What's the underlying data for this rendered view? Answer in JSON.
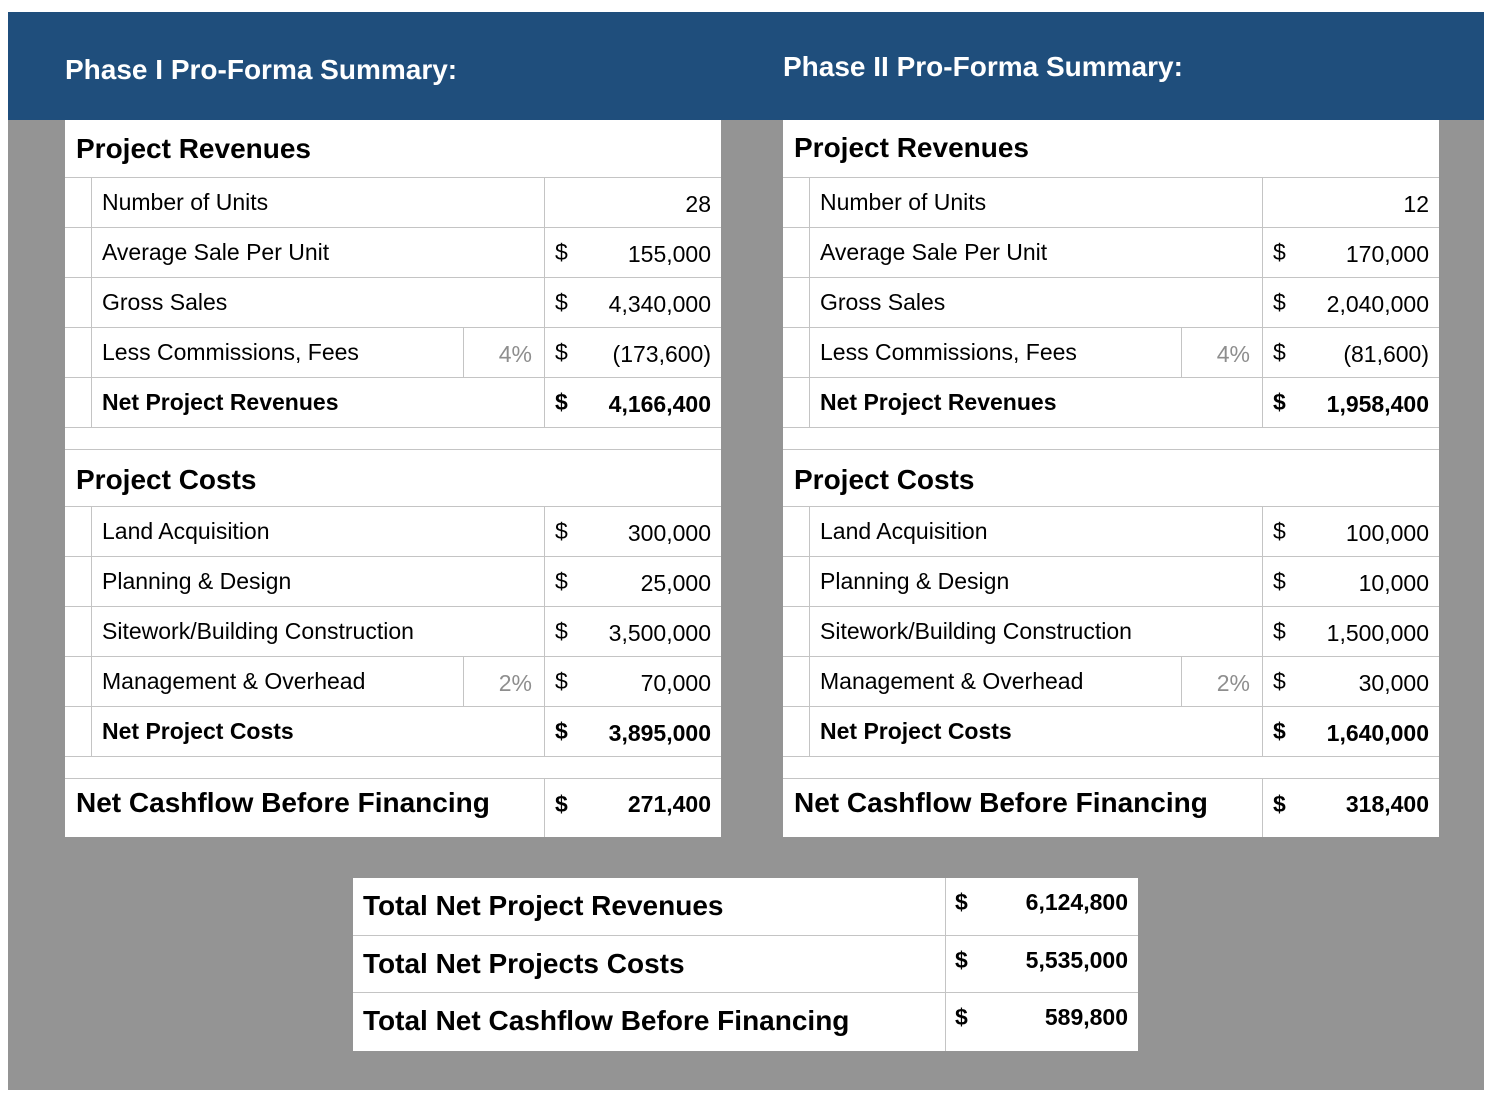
{
  "colors": {
    "banner": "#1f4e7c",
    "background": "#949494",
    "panel": "#ffffff",
    "gridline": "#c4c4c4",
    "percent_text": "#8e8e8e"
  },
  "phases": [
    {
      "title": "Phase I Pro-Forma Summary:",
      "revenues": {
        "heading": "Project Revenues",
        "rows": [
          {
            "label": "Number of Units",
            "pct": "",
            "currency": "",
            "value": "28"
          },
          {
            "label": "Average Sale Per Unit",
            "pct": "",
            "currency": "$",
            "value": "155,000"
          },
          {
            "label": "Gross Sales",
            "pct": "",
            "currency": "$",
            "value": "4,340,000"
          },
          {
            "label": "Less Commissions, Fees",
            "pct": "4%",
            "currency": "$",
            "value": "(173,600)"
          },
          {
            "label": "Net Project Revenues",
            "pct": "",
            "currency": "$",
            "value": "4,166,400"
          }
        ]
      },
      "costs": {
        "heading": "Project Costs",
        "rows": [
          {
            "label": "Land Acquisition",
            "pct": "",
            "currency": "$",
            "value": "300,000"
          },
          {
            "label": "Planning & Design",
            "pct": "",
            "currency": "$",
            "value": "25,000"
          },
          {
            "label": "Sitework/Building Construction",
            "pct": "",
            "currency": "$",
            "value": "3,500,000"
          },
          {
            "label": "Management & Overhead",
            "pct": "2%",
            "currency": "$",
            "value": "70,000"
          },
          {
            "label": "Net Project Costs",
            "pct": "",
            "currency": "$",
            "value": "3,895,000"
          }
        ]
      },
      "net_cashflow": {
        "label": "Net Cashflow Before Financing",
        "currency": "$",
        "value": "271,400"
      }
    },
    {
      "title": "Phase II Pro-Forma Summary:",
      "revenues": {
        "heading": "Project Revenues",
        "rows": [
          {
            "label": "Number of Units",
            "pct": "",
            "currency": "",
            "value": "12"
          },
          {
            "label": "Average Sale Per Unit",
            "pct": "",
            "currency": "$",
            "value": "170,000"
          },
          {
            "label": "Gross Sales",
            "pct": "",
            "currency": "$",
            "value": "2,040,000"
          },
          {
            "label": "Less Commissions, Fees",
            "pct": "4%",
            "currency": "$",
            "value": "(81,600)"
          },
          {
            "label": "Net Project Revenues",
            "pct": "",
            "currency": "$",
            "value": "1,958,400"
          }
        ]
      },
      "costs": {
        "heading": "Project Costs",
        "rows": [
          {
            "label": "Land Acquisition",
            "pct": "",
            "currency": "$",
            "value": "100,000"
          },
          {
            "label": "Planning & Design",
            "pct": "",
            "currency": "$",
            "value": "10,000"
          },
          {
            "label": "Sitework/Building Construction",
            "pct": "",
            "currency": "$",
            "value": "1,500,000"
          },
          {
            "label": "Management & Overhead",
            "pct": "2%",
            "currency": "$",
            "value": "30,000"
          },
          {
            "label": "Net Project Costs",
            "pct": "",
            "currency": "$",
            "value": "1,640,000"
          }
        ]
      },
      "net_cashflow": {
        "label": "Net Cashflow Before Financing",
        "currency": "$",
        "value": "318,400"
      }
    }
  ],
  "totals": [
    {
      "label": "Total Net Project Revenues",
      "currency": "$",
      "value": "6,124,800"
    },
    {
      "label": "Total Net Projects Costs",
      "currency": "$",
      "value": "5,535,000"
    },
    {
      "label": "Total Net Cashflow Before Financing",
      "currency": "$",
      "value": "589,800"
    }
  ]
}
